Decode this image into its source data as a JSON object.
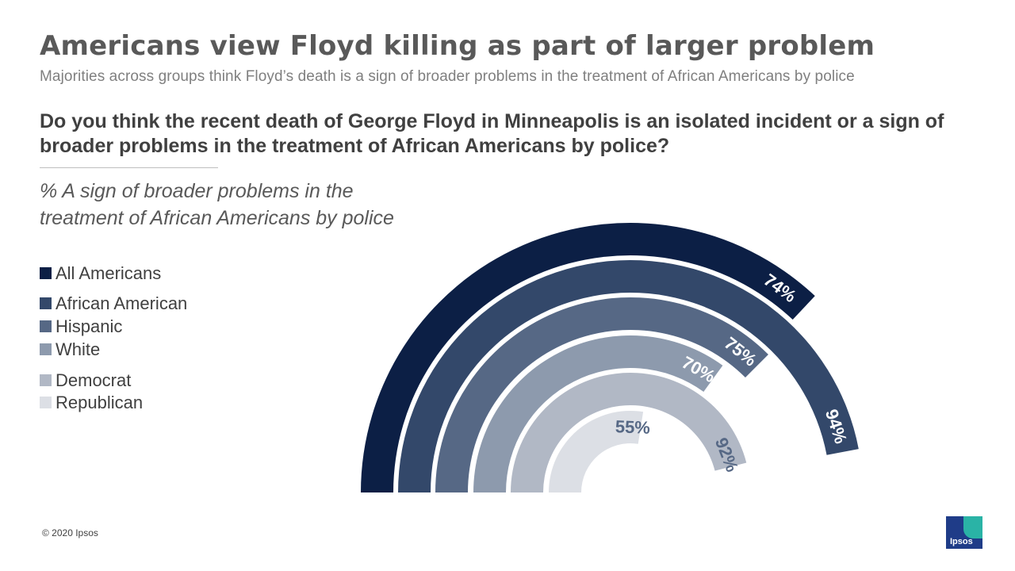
{
  "header": {
    "title": "Americans view Floyd killing as part of larger problem",
    "subtitle": "Majorities across groups think Floyd’s death is a sign of broader problems in the treatment of African Americans by police"
  },
  "question": "Do you think the recent death of George Floyd in Minneapolis is an isolated incident or a sign of broader problems in the treatment of African Americans by police?",
  "measure_line1": "% A sign of broader problems in the",
  "measure_line2": "treatment of African Americans by police",
  "footer": {
    "copyright": "© 2020 Ipsos",
    "logo_text": "Ipsos",
    "logo_colors": {
      "primary": "#1f3c88",
      "accent": "#2ab3a6"
    }
  },
  "chart_data": {
    "type": "radial-bar",
    "title": "",
    "max_value": 100,
    "series": [
      {
        "name": "All Americans",
        "value": 74,
        "label": "74%",
        "color": "#0c1f45",
        "label_color": "#ffffff"
      },
      {
        "name": "African American",
        "value": 94,
        "label": "94%",
        "color": "#33486a",
        "label_color": "#ffffff"
      },
      {
        "name": "Hispanic",
        "value": 75,
        "label": "75%",
        "color": "#566885",
        "label_color": "#ffffff"
      },
      {
        "name": "White",
        "value": 70,
        "label": "70%",
        "color": "#8d9aad",
        "label_color": "#ffffff"
      },
      {
        "name": "Democrat",
        "value": 92,
        "label": "92%",
        "color": "#b1b8c5",
        "label_color": "#566885"
      },
      {
        "name": "Republican",
        "value": 55,
        "label": "55%",
        "color": "#dcdfe5",
        "label_color": "#566885"
      }
    ]
  }
}
